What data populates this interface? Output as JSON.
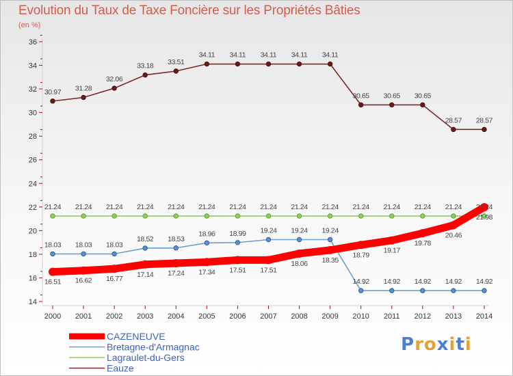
{
  "title": "Evolution du Taux de Taxe Foncière sur les Propriétés Bâties",
  "unit_label": "(en %)",
  "logo": {
    "letters": [
      "P",
      "r",
      "o",
      "x",
      "i",
      "t",
      "i"
    ],
    "colors": [
      "#4a7fd0",
      "#e2a23a",
      "#e2a23a",
      "#4a7fd0",
      "#e2a23a",
      "#4a7fd0",
      "#e2a23a"
    ]
  },
  "chart_data": {
    "type": "line",
    "title": "Evolution du Taux de Taxe Foncière sur les Propriétés Bâties",
    "ylabel": "(en %)",
    "xlabel": "",
    "ylim": [
      14,
      36
    ],
    "yticks": [
      14,
      16,
      18,
      20,
      22,
      24,
      26,
      28,
      30,
      32,
      34,
      36
    ],
    "x": [
      "2000",
      "2001",
      "2002",
      "2003",
      "2004",
      "2005",
      "2006",
      "2007",
      "2008",
      "2009",
      "2010",
      "2011",
      "2012",
      "2013",
      "2014"
    ],
    "series": [
      {
        "name": "CAZENEUVE",
        "color": "#ff0000",
        "values": [
          16.51,
          16.62,
          16.77,
          17.14,
          17.24,
          17.34,
          17.51,
          17.51,
          18.06,
          18.35,
          18.79,
          19.17,
          19.78,
          20.46,
          21.98
        ],
        "labels": [
          "16.51",
          "16.62",
          "16.77",
          "17.14",
          "17.24",
          "17.34",
          "17.51",
          "17.51",
          "18.06",
          "18.35",
          "18.79",
          "19.17",
          "19.78",
          "20.46",
          "21.98"
        ]
      },
      {
        "name": "Bretagne-d'Armagnac",
        "color": "#6a9fd0",
        "values": [
          18.03,
          18.03,
          18.03,
          18.52,
          18.53,
          18.96,
          18.99,
          19.24,
          19.24,
          19.24,
          14.92,
          14.92,
          14.92,
          14.92,
          14.92
        ],
        "labels": [
          "18.03",
          "18.03",
          "18.03",
          "18.52",
          "18.53",
          "18.96",
          "18.99",
          "19.24",
          "19.24",
          "19.24",
          "14.92",
          "14.92",
          "14.92",
          "14.92",
          "14.92"
        ]
      },
      {
        "name": "Lagraulet-du-Gers",
        "color": "#8fd05a",
        "values": [
          21.24,
          21.24,
          21.24,
          21.24,
          21.24,
          21.24,
          21.24,
          21.24,
          21.24,
          21.24,
          21.24,
          21.24,
          21.24,
          21.24,
          21.24
        ],
        "labels": [
          "21.24",
          "21.24",
          "21.24",
          "21.24",
          "21.24",
          "21.24",
          "21.24",
          "21.24",
          "21.24",
          "21.24",
          "21.24",
          "21.24",
          "21.24",
          "21.24",
          "21.24"
        ]
      },
      {
        "name": "Eauze",
        "color": "#7a2a2a",
        "values": [
          30.97,
          31.28,
          32.06,
          33.18,
          33.51,
          34.11,
          34.11,
          34.11,
          34.11,
          34.11,
          30.65,
          30.65,
          30.65,
          28.57,
          28.57
        ],
        "labels": [
          "30.97",
          "31.28",
          "32.06",
          "33.18",
          "33.51",
          "34.11",
          "34.11",
          "34.11",
          "34.11",
          "34.11",
          "30.65",
          "30.65",
          "30.65",
          "28.57",
          "28.57"
        ]
      }
    ],
    "legend": [
      "CAZENEUVE",
      "Bretagne-d'Armagnac",
      "Lagraulet-du-Gers",
      "Eauze"
    ],
    "legend_position": "bottom-left",
    "grid": false
  }
}
